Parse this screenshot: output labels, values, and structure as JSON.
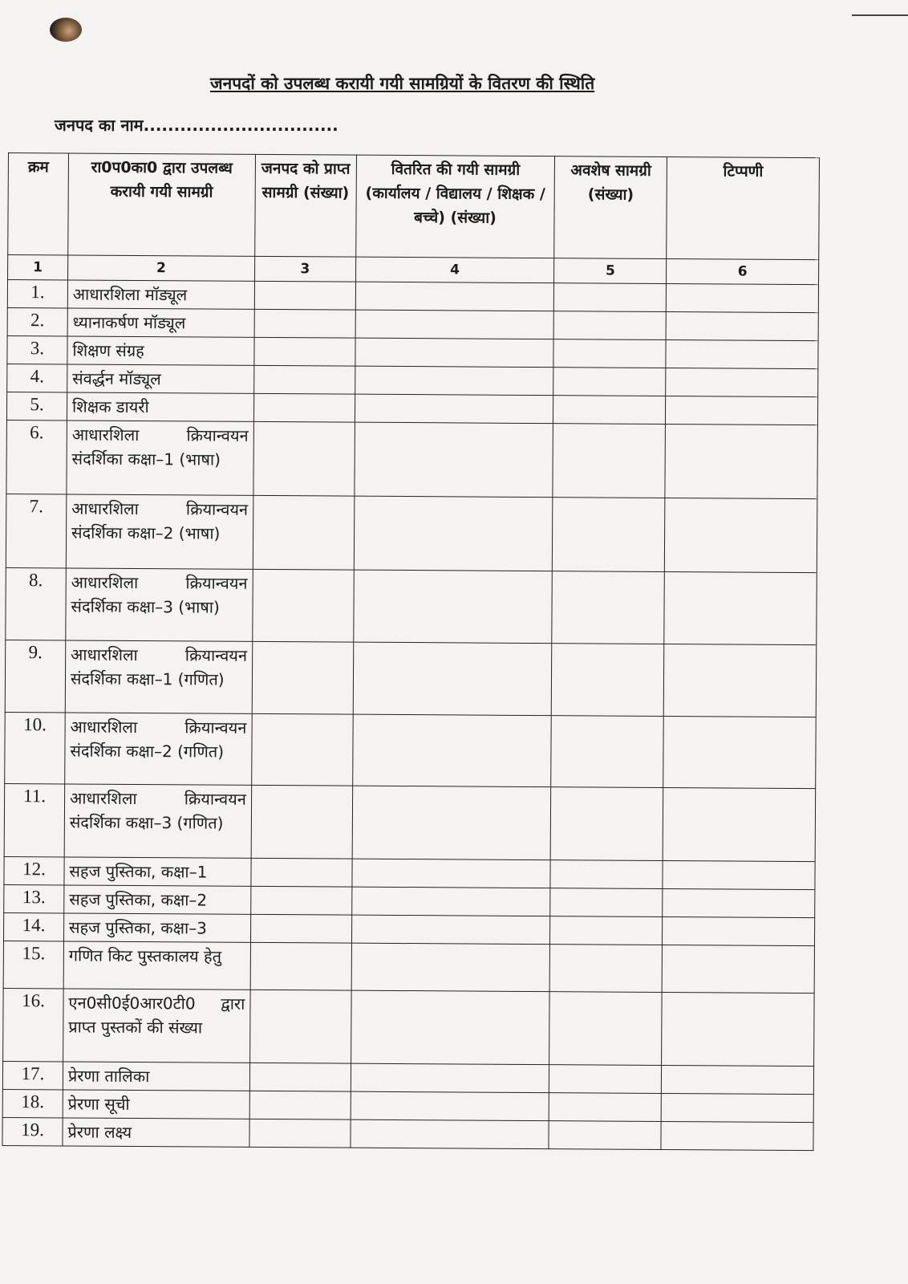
{
  "title": "जनपदों को उपलब्ध करायी गयी सामग्रियों के वितरण की स्थिति",
  "district_label": "जनपद का नाम................................",
  "table": {
    "headers": [
      "क्रम",
      "रा0प0का0 द्वारा उपलब्ध करायी गयी सामग्री",
      "जनपद को प्राप्त सामग्री (संख्या)",
      "वितरित की गयी सामग्री (कार्यालय / विद्यालय / शिक्षक / बच्चे) (संख्या)",
      "अवशेष सामग्री (संख्या)",
      "टिप्पणी"
    ],
    "column_numbers": [
      "1",
      "2",
      "3",
      "4",
      "5",
      "6"
    ],
    "rows": [
      {
        "sn": "1.",
        "item": "आधारशिला मॉड्यूल"
      },
      {
        "sn": "2.",
        "item": "ध्यानाकर्षण मॉड्यूल"
      },
      {
        "sn": "3.",
        "item": "शिक्षण संग्रह"
      },
      {
        "sn": "4.",
        "item": "संवर्द्धन मॉड्यूल"
      },
      {
        "sn": "5.",
        "item": "शिक्षक डायरी"
      },
      {
        "sn": "6.",
        "item": "आधारशिला क्रियान्वयन संदर्शिका कक्षा–1 (भाषा)"
      },
      {
        "sn": "7.",
        "item": "आधारशिला क्रियान्वयन संदर्शिका कक्षा–2 (भाषा)"
      },
      {
        "sn": "8.",
        "item": "आधारशिला क्रियान्वयन संदर्शिका कक्षा–3 (भाषा)"
      },
      {
        "sn": "9.",
        "item": "आधारशिला क्रियान्वयन संदर्शिका कक्षा–1 (गणित)"
      },
      {
        "sn": "10.",
        "item": "आधारशिला क्रियान्वयन संदर्शिका कक्षा–2 (गणित)"
      },
      {
        "sn": "11.",
        "item": "आधारशिला क्रियान्वयन संदर्शिका कक्षा–3 (गणित)"
      },
      {
        "sn": "12.",
        "item": "सहज पुस्तिका, कक्षा–1"
      },
      {
        "sn": "13.",
        "item": "सहज पुस्तिका, कक्षा–2"
      },
      {
        "sn": "14.",
        "item": "सहज पुस्तिका, कक्षा–3"
      },
      {
        "sn": "15.",
        "item": "गणित किट पुस्तकालय हेतु"
      },
      {
        "sn": "16.",
        "item": "एन0सी0ई0आर0टी0 द्वारा प्राप्त पुस्तकों की संख्या"
      },
      {
        "sn": "17.",
        "item": "प्रेरणा तालिका"
      },
      {
        "sn": "18.",
        "item": "प्रेरणा सूची"
      },
      {
        "sn": "19.",
        "item": "प्रेरणा लक्ष्य"
      }
    ]
  }
}
